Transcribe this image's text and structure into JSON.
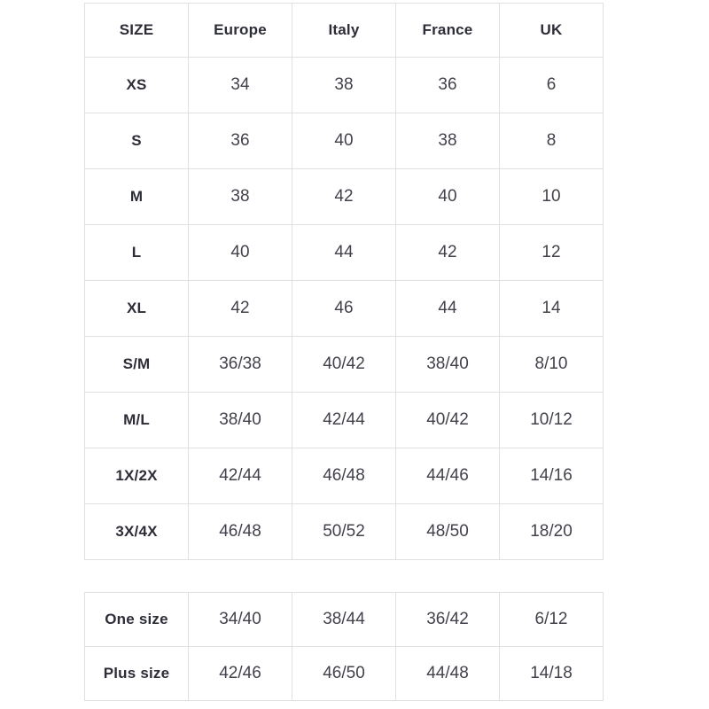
{
  "page": {
    "background": "#ffffff"
  },
  "colors": {
    "header_text": "#2d2d38",
    "value_text": "#42424c",
    "border": "#e0e0e0"
  },
  "size_table": {
    "headers": [
      "SIZE",
      "Europe",
      "Italy",
      "France",
      "UK"
    ],
    "rows": [
      {
        "label": "XS",
        "values": [
          "34",
          "38",
          "36",
          "6"
        ]
      },
      {
        "label": "S",
        "values": [
          "36",
          "40",
          "38",
          "8"
        ]
      },
      {
        "label": "M",
        "values": [
          "38",
          "42",
          "40",
          "10"
        ]
      },
      {
        "label": "L",
        "values": [
          "40",
          "44",
          "42",
          "12"
        ]
      },
      {
        "label": "XL",
        "values": [
          "42",
          "46",
          "44",
          "14"
        ]
      },
      {
        "label": "S/M",
        "values": [
          "36/38",
          "40/42",
          "38/40",
          "8/10"
        ]
      },
      {
        "label": "M/L",
        "values": [
          "38/40",
          "42/44",
          "40/42",
          "10/12"
        ]
      },
      {
        "label": "1X/2X",
        "values": [
          "42/44",
          "46/48",
          "44/46",
          "14/16"
        ]
      },
      {
        "label": "3X/4X",
        "values": [
          "46/48",
          "50/52",
          "48/50",
          "18/20"
        ]
      }
    ]
  },
  "special_size_table": {
    "rows": [
      {
        "label": "One size",
        "values": [
          "34/40",
          "38/44",
          "36/42",
          "6/12"
        ]
      },
      {
        "label": "Plus size",
        "values": [
          "42/46",
          "46/50",
          "44/48",
          "14/18"
        ]
      }
    ]
  }
}
